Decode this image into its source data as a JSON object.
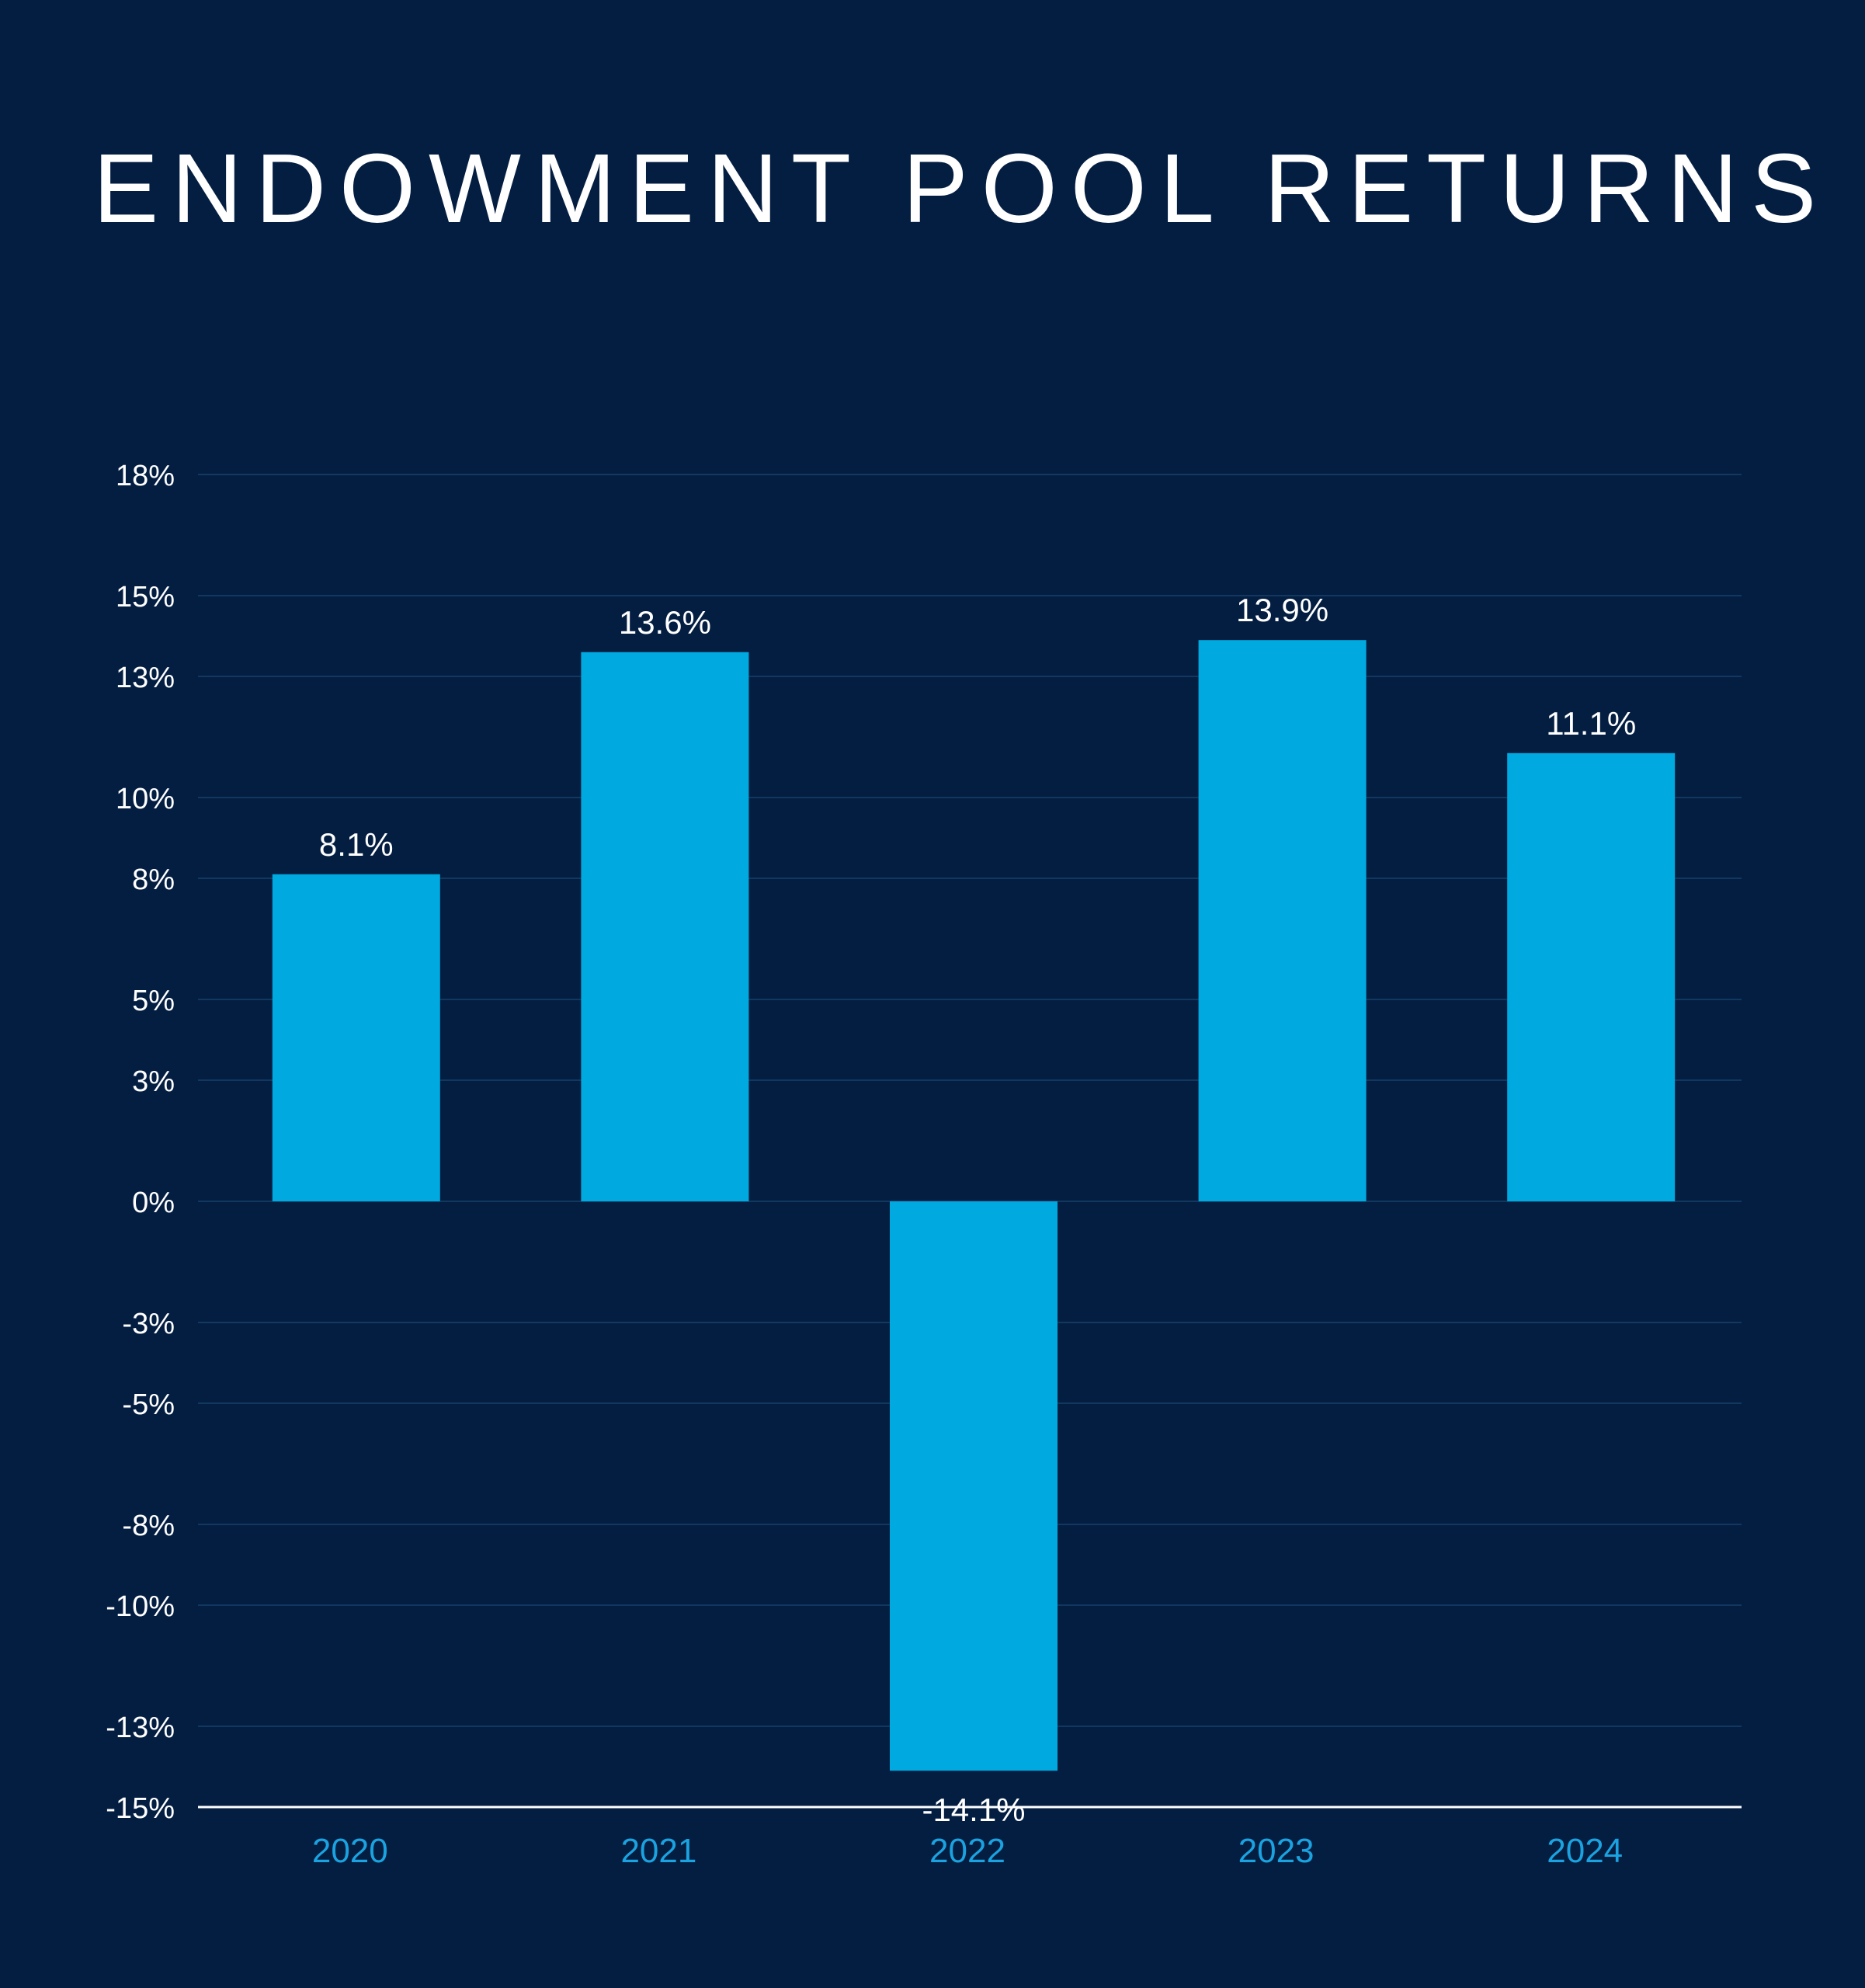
{
  "chart_data": {
    "type": "bar",
    "title": "ENDOWMENT POOL RETURNS",
    "xlabel": "",
    "ylabel": "",
    "categories": [
      "2020",
      "2021",
      "2022",
      "2023",
      "2024"
    ],
    "values": [
      8.1,
      13.6,
      -14.1,
      13.9,
      11.1
    ],
    "data_labels": [
      "8.1%",
      "13.6%",
      "-14.1%",
      "13.9%",
      "11.1%"
    ],
    "ylim": [
      -15,
      18
    ],
    "yticks": [
      18,
      15,
      13,
      10,
      8,
      5,
      3,
      0,
      -3,
      -5,
      -8,
      -10,
      -13,
      -15
    ],
    "ytick_labels": [
      "18%",
      "15%",
      "13%",
      "10%",
      "8%",
      "5%",
      "3%",
      "0%",
      "-3%",
      "-5%",
      "-8%",
      "-10%",
      "-13%",
      "-15%"
    ],
    "grid": true,
    "legend": "none",
    "colors": {
      "background": "#041E42",
      "bar": "#00A9E0",
      "gridline": "#12385F",
      "axis_line": "#FFFFFF",
      "text": "#FFFFFF",
      "category_label": "#1AA3E0"
    }
  }
}
